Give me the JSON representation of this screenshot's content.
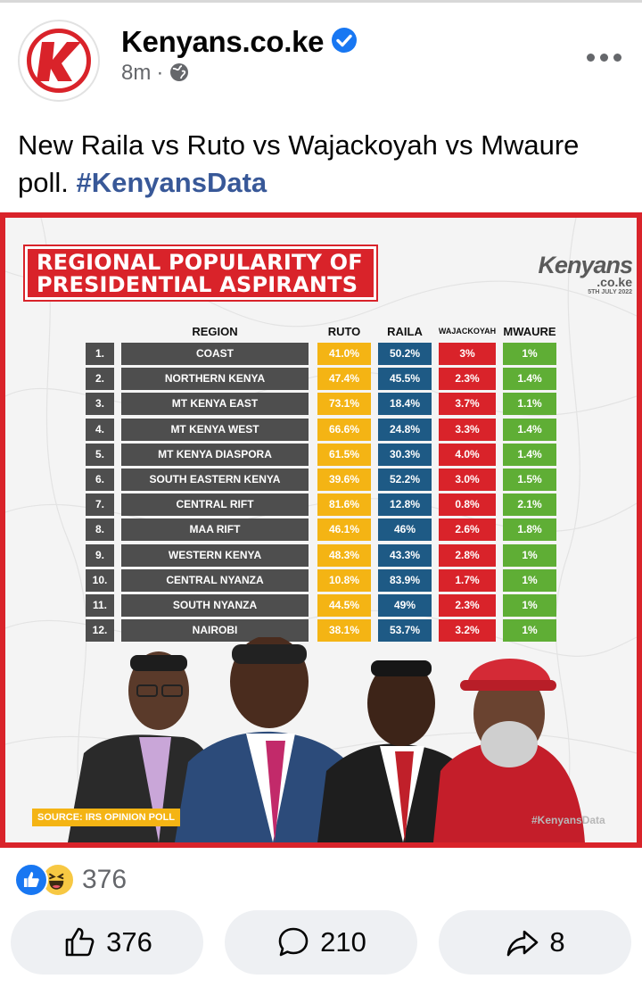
{
  "post": {
    "page_name": "Kenyans.co.ke",
    "time": "8m",
    "dot": "·",
    "text": "New Raila vs Ruto vs Wajackoyah vs Mwaure poll.",
    "hashtag": "#KenyansData"
  },
  "graphic": {
    "banner_line1": "REGIONAL POPULARITY OF",
    "banner_line2": "PRESIDENTIAL ASPIRANTS",
    "brand_name": "Kenyans",
    "brand_sub": ".co.ke",
    "brand_date": "5TH JULY 2022",
    "columns": {
      "region": "REGION",
      "ruto": "RUTO",
      "raila": "RAILA",
      "wajackoyah": "WAJACKOYAH",
      "mwaure": "MWAURE"
    },
    "rows": [
      {
        "num": "1.",
        "region": "COAST",
        "ruto": "41.0%",
        "raila": "50.2%",
        "waja": "3%",
        "mwaure": "1%"
      },
      {
        "num": "2.",
        "region": "NORTHERN KENYA",
        "ruto": "47.4%",
        "raila": "45.5%",
        "waja": "2.3%",
        "mwaure": "1.4%"
      },
      {
        "num": "3.",
        "region": "MT KENYA EAST",
        "ruto": "73.1%",
        "raila": "18.4%",
        "waja": "3.7%",
        "mwaure": "1.1%"
      },
      {
        "num": "4.",
        "region": "MT KENYA WEST",
        "ruto": "66.6%",
        "raila": "24.8%",
        "waja": "3.3%",
        "mwaure": "1.4%"
      },
      {
        "num": "5.",
        "region": "MT KENYA DIASPORA",
        "ruto": "61.5%",
        "raila": "30.3%",
        "waja": "4.0%",
        "mwaure": "1.4%"
      },
      {
        "num": "6.",
        "region": "SOUTH EASTERN KENYA",
        "ruto": "39.6%",
        "raila": "52.2%",
        "waja": "3.0%",
        "mwaure": "1.5%"
      },
      {
        "num": "7.",
        "region": "CENTRAL RIFT",
        "ruto": "81.6%",
        "raila": "12.8%",
        "waja": "0.8%",
        "mwaure": "2.1%"
      },
      {
        "num": "8.",
        "region": "MAA RIFT",
        "ruto": "46.1%",
        "raila": "46%",
        "waja": "2.6%",
        "mwaure": "1.8%"
      },
      {
        "num": "9.",
        "region": "WESTERN KENYA",
        "ruto": "48.3%",
        "raila": "43.3%",
        "waja": "2.8%",
        "mwaure": "1%"
      },
      {
        "num": "10.",
        "region": "CENTRAL NYANZA",
        "ruto": "10.8%",
        "raila": "83.9%",
        "waja": "1.7%",
        "mwaure": "1%"
      },
      {
        "num": "11.",
        "region": "SOUTH NYANZA",
        "ruto": "44.5%",
        "raila": "49%",
        "waja": "2.3%",
        "mwaure": "1%"
      },
      {
        "num": "12.",
        "region": "NAIROBI",
        "ruto": "38.1%",
        "raila": "53.7%",
        "waja": "3.2%",
        "mwaure": "1%"
      }
    ],
    "source": "SOURCE: IRS OPINION POLL",
    "tag": "#KenyansData"
  },
  "reactions": {
    "count": "376",
    "types": [
      "like",
      "haha"
    ]
  },
  "actions": {
    "like_count": "376",
    "comment_count": "210",
    "share_count": "8"
  },
  "colors": {
    "brand_red": "#d9232a",
    "ruto": "#f4b414",
    "raila": "#1e5a85",
    "wajackoyah": "#d9232a",
    "mwaure": "#5fae35",
    "region": "#4e4e4e",
    "link": "#385898"
  }
}
